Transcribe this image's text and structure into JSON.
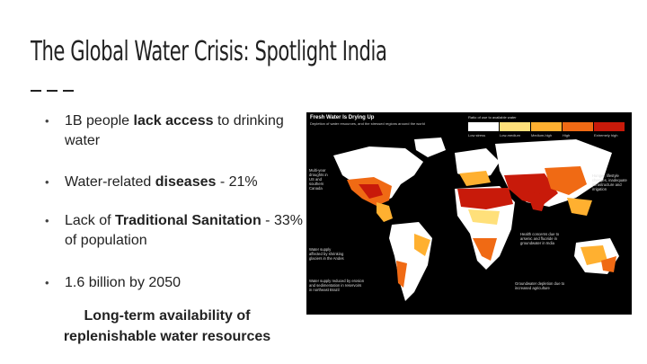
{
  "slide": {
    "title": "The Global Water Crisis: Spotlight India",
    "bullets": [
      {
        "pre": "1B people ",
        "bold": "lack access",
        "post": " to drinking water"
      },
      {
        "pre": "Water-related ",
        "bold": "diseases",
        "post": " - 21%"
      },
      {
        "pre": "Lack of ",
        "bold": "Traditional Sanitation",
        "post": " - 33% of population"
      },
      {
        "pre": "1.6 billion by 2050",
        "bold": "",
        "post": ""
      }
    ],
    "caption": "Long-term availability of replenishable water resources"
  },
  "map": {
    "title": "Fresh Water Is Drying Up",
    "subtitle": "Depletion of water resources, and the stressed regions around the world",
    "legend_title": "Ratio of use to available water",
    "legend_colors": [
      "#ffffff",
      "#ffe07a",
      "#ffb030",
      "#f06a14",
      "#c81a0a"
    ],
    "legend_labels": [
      "Low stress",
      "Low-medium",
      "Medium-high",
      "High",
      "Extremely high"
    ],
    "annotations": [
      "Multi-year droughts in US and southern Canada",
      "Water supply affected by shrinking glaciers in the Andes",
      "Water supply reduced by erosion and sedimentation in reservoirs in northeast Brazil",
      "Health concerns due to arsenic and fluoride in groundwater in India",
      "Hunger, lifestyle changes, inadequate infrastructure and irrigation",
      "Groundwater depletion due to increased agriculture"
    ]
  }
}
